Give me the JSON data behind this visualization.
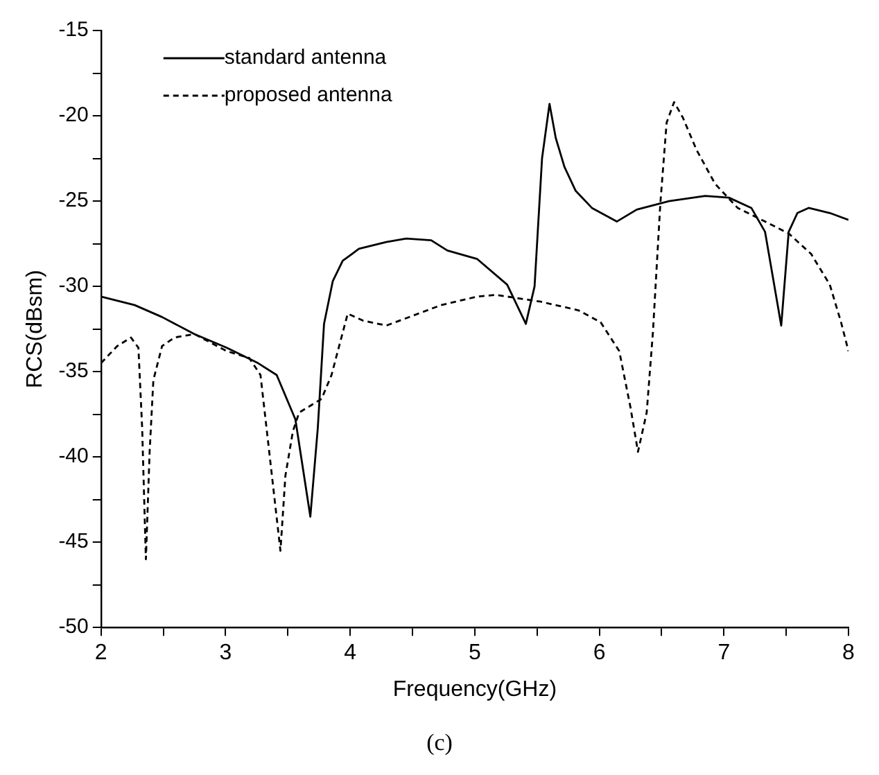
{
  "chart_data": {
    "type": "line",
    "xlabel": "Frequency(GHz)",
    "ylabel": "RCS(dBsm)",
    "annotations": [
      "(c)"
    ],
    "xlim": [
      2,
      8
    ],
    "ylim": [
      -50,
      -15
    ],
    "xticks": [
      2,
      {
        "value": 2.5,
        "label": null
      },
      3,
      {
        "value": 3.5,
        "label": null
      },
      4,
      {
        "value": 4.5,
        "label": null
      },
      5,
      {
        "value": 5.5,
        "label": null
      },
      6,
      {
        "value": 6.5,
        "label": null
      },
      7,
      {
        "value": 7.5,
        "label": null
      },
      8
    ],
    "yticks": [
      -50,
      {
        "value": -47.5,
        "label": null
      },
      -45,
      {
        "value": -42.5,
        "label": null
      },
      -40,
      {
        "value": -37.5,
        "label": null
      },
      -35,
      {
        "value": -32.5,
        "label": null
      },
      -30,
      {
        "value": -27.5,
        "label": null
      },
      -25,
      {
        "value": -22.5,
        "label": null
      },
      -20,
      {
        "value": -17.5,
        "label": null
      },
      -15
    ],
    "grid": false,
    "legend": "top left",
    "marker": "none",
    "series": [
      {
        "name": "standard antenna",
        "color": "#000000",
        "line_style": "solid",
        "x": [
          2,
          2.27,
          2.49,
          2.75,
          3.01,
          3.26,
          3.41,
          3.56,
          3.68,
          3.74,
          3.79,
          3.86,
          3.94,
          4.07,
          4.29,
          4.45,
          4.65,
          4.78,
          5.02,
          5.26,
          5.41,
          5.48,
          5.54,
          5.6,
          5.65,
          5.72,
          5.81,
          5.94,
          6.14,
          6.3,
          6.56,
          6.85,
          7.04,
          7.22,
          7.33,
          7.46,
          7.52,
          7.59,
          7.68,
          7.85,
          8
        ],
        "values": [
          -30.6,
          -31.1,
          -31.8,
          -32.8,
          -33.6,
          -34.5,
          -35.2,
          -37.8,
          -43.5,
          -38.3,
          -32.2,
          -29.7,
          -28.5,
          -27.8,
          -27.4,
          -27.2,
          -27.3,
          -27.9,
          -28.4,
          -29.9,
          -32.2,
          -30,
          -22.5,
          -19.3,
          -21.3,
          -23,
          -24.4,
          -25.4,
          -26.2,
          -25.5,
          -25,
          -24.7,
          -24.8,
          -25.4,
          -26.8,
          -32.3,
          -26.8,
          -25.7,
          -25.4,
          -25.7,
          -26.1
        ]
      },
      {
        "name": "proposed antenna",
        "color": "#000000",
        "line_style": "dashed",
        "x": [
          2,
          2.13,
          2.24,
          2.3,
          2.33,
          2.36,
          2.39,
          2.42,
          2.49,
          2.59,
          2.75,
          3.01,
          3.19,
          3.28,
          3.35,
          3.44,
          3.48,
          3.54,
          3.59,
          3.77,
          3.85,
          3.98,
          4.1,
          4.29,
          4.51,
          4.73,
          5.02,
          5.17,
          5.53,
          5.83,
          6.01,
          6.16,
          6.25,
          6.31,
          6.38,
          6.43,
          6.49,
          6.54,
          6.6,
          6.67,
          6.78,
          6.93,
          7.11,
          7.33,
          7.52,
          7.7,
          7.85,
          7.94,
          8
        ],
        "values": [
          -34.5,
          -33.5,
          -33,
          -33.6,
          -38.3,
          -46,
          -39.7,
          -35.5,
          -33.5,
          -33,
          -32.8,
          -33.8,
          -34.2,
          -35.2,
          -39.7,
          -45.5,
          -41.1,
          -38.5,
          -37.4,
          -36.6,
          -35.2,
          -31.6,
          -32,
          -32.3,
          -31.7,
          -31.1,
          -30.6,
          -30.5,
          -30.9,
          -31.4,
          -32.1,
          -33.8,
          -37.1,
          -39.7,
          -37.4,
          -32.7,
          -25.1,
          -20.4,
          -19.2,
          -20.1,
          -22,
          -24,
          -25.4,
          -26.2,
          -26.9,
          -28.1,
          -29.9,
          -32.1,
          -33.8
        ]
      }
    ]
  }
}
